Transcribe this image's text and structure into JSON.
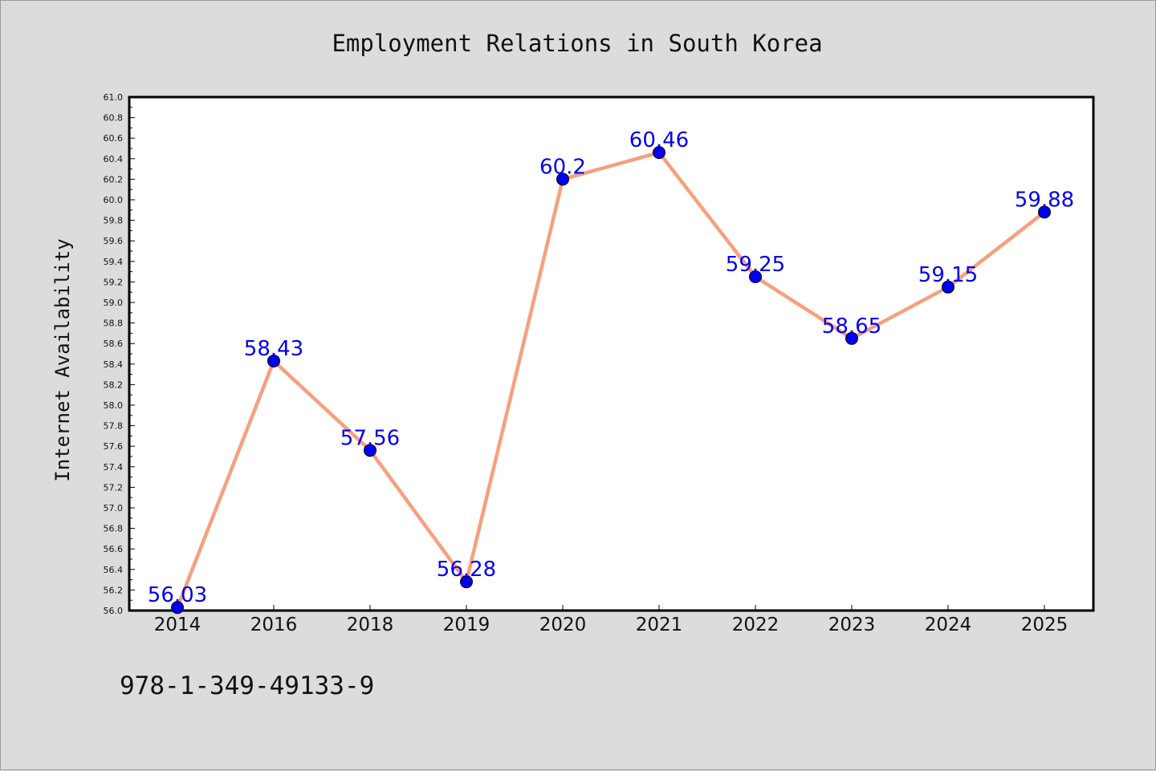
{
  "colors": {
    "background": "#dcdcdc",
    "plot_background": "#ffffff",
    "line": "#f7a07e",
    "marker": "#0000ee",
    "data_label": "#0000ee"
  },
  "footer": {
    "isbn": "978-1-349-49133-9"
  },
  "chart_data": {
    "type": "line",
    "title": "Employment Relations in South Korea",
    "xlabel": "",
    "ylabel": "Internet Availability",
    "categories": [
      "2014",
      "2016",
      "2018",
      "2019",
      "2020",
      "2021",
      "2022",
      "2023",
      "2024",
      "2025"
    ],
    "series": [
      {
        "values": [
          56.03,
          58.43,
          57.56,
          56.28,
          60.2,
          60.46,
          59.25,
          58.65,
          59.15,
          59.88
        ]
      }
    ],
    "data_labels": [
      "56.03",
      "58.43",
      "57.56",
      "56.28",
      "60.2",
      "60.46",
      "59.25",
      "58.65",
      "59.15",
      "59.88"
    ],
    "ylim": [
      56.0,
      61.0
    ],
    "yticks": [
      "56.0",
      "56.2",
      "56.4",
      "56.6",
      "56.8",
      "57.0",
      "57.2",
      "57.4",
      "57.6",
      "57.8",
      "58.0",
      "58.2",
      "58.4",
      "58.6",
      "58.8",
      "59.0",
      "59.2",
      "59.4",
      "59.6",
      "59.8",
      "60.0",
      "60.2",
      "60.4",
      "60.6",
      "60.8",
      "61.0"
    ],
    "grid": false,
    "legend": "none"
  }
}
